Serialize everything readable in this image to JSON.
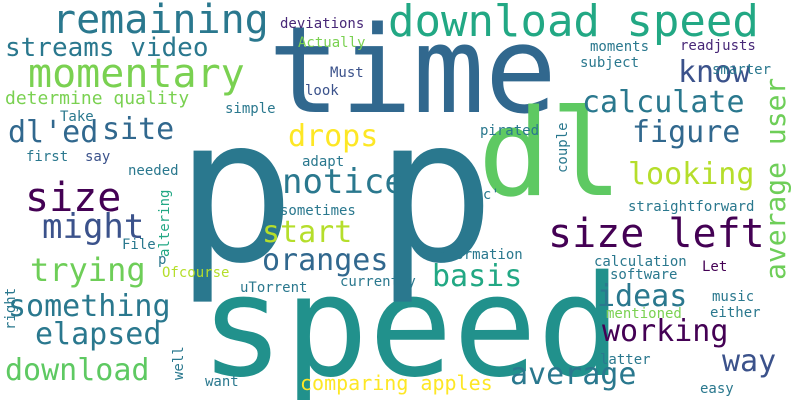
{
  "words": [
    {
      "text": "p",
      "color": "#2a788e"
    },
    {
      "text": "speed",
      "color": "#21918c"
    },
    {
      "text": "time",
      "color": "#31688e"
    },
    {
      "text": "p",
      "color": "#2a788e"
    },
    {
      "text": "dl",
      "color": "#5ec962"
    },
    {
      "text": "download speed",
      "color": "#22a884"
    },
    {
      "text": "remaining",
      "color": "#2a788e"
    },
    {
      "text": "momentary",
      "color": "#7ad151"
    },
    {
      "text": "size left",
      "color": "#440154"
    },
    {
      "text": "average user",
      "color": "#6ece58"
    },
    {
      "text": "average",
      "color": "#2a788e"
    },
    {
      "text": "size",
      "color": "#440154"
    },
    {
      "text": "calculate",
      "color": "#2a788e"
    },
    {
      "text": "streams video",
      "color": "#2a788e"
    },
    {
      "text": "know",
      "color": "#3b528b"
    },
    {
      "text": "figure",
      "color": "#31688e"
    },
    {
      "text": "site",
      "color": "#31688e"
    },
    {
      "text": "dl'ed",
      "color": "#31688e"
    },
    {
      "text": "drops",
      "color": "#fde725"
    },
    {
      "text": "notice",
      "color": "#2a788e"
    },
    {
      "text": "looking",
      "color": "#b5de2b"
    },
    {
      "text": "might",
      "color": "#3b528b"
    },
    {
      "text": "start",
      "color": "#b5de2b"
    },
    {
      "text": "oranges",
      "color": "#31688e"
    },
    {
      "text": "trying",
      "color": "#6ece58"
    },
    {
      "text": "basis",
      "color": "#22a884"
    },
    {
      "text": "ideas",
      "color": "#2a788e"
    },
    {
      "text": "something",
      "color": "#2a788e"
    },
    {
      "text": "working",
      "color": "#440154"
    },
    {
      "text": "elapsed",
      "color": "#2a788e"
    },
    {
      "text": "way",
      "color": "#3b528b"
    },
    {
      "text": "download",
      "color": "#5ec962"
    },
    {
      "text": "comparing apples",
      "color": "#fde725"
    },
    {
      "text": "determine quality",
      "color": "#7ad151"
    },
    {
      "text": "deviations",
      "color": "#482878"
    },
    {
      "text": "Actually",
      "color": "#7ad151"
    },
    {
      "text": "moments",
      "color": "#2a788e"
    },
    {
      "text": "readjusts",
      "color": "#482878"
    },
    {
      "text": "subject",
      "color": "#2a788e"
    },
    {
      "text": "smarter",
      "color": "#2a788e"
    },
    {
      "text": "Must",
      "color": "#3b528b"
    },
    {
      "text": "look",
      "color": "#3b528b"
    },
    {
      "text": "simple",
      "color": "#2a788e"
    },
    {
      "text": "Take",
      "color": "#2a788e"
    },
    {
      "text": "pirated",
      "color": "#2a788e"
    },
    {
      "text": "couple",
      "color": "#2a788e"
    },
    {
      "text": "first",
      "color": "#2a788e"
    },
    {
      "text": "say",
      "color": "#3b528b"
    },
    {
      "text": "adapt",
      "color": "#2a788e"
    },
    {
      "text": "needed",
      "color": "#2a788e"
    },
    {
      "text": "sometimes",
      "color": "#2a788e"
    },
    {
      "text": "straightforward",
      "color": "#2a788e"
    },
    {
      "text": "altering",
      "color": "#22a884"
    },
    {
      "text": "etc'",
      "color": "#2a788e"
    },
    {
      "text": "File",
      "color": "#2a788e"
    },
    {
      "text": "information",
      "color": "#2a788e"
    },
    {
      "text": "p",
      "color": "#2a788e"
    },
    {
      "text": "Let",
      "color": "#440154"
    },
    {
      "text": "calculation",
      "color": "#2a788e"
    },
    {
      "text": "Ofcourse",
      "color": "#b5de2b"
    },
    {
      "text": "software",
      "color": "#2a788e"
    },
    {
      "text": "uTorrent",
      "color": "#2a788e"
    },
    {
      "text": "currently",
      "color": "#2a788e"
    },
    {
      "text": "music",
      "color": "#2a788e"
    },
    {
      "text": "right",
      "color": "#2a788e"
    },
    {
      "text": "mentioned",
      "color": "#7ad151"
    },
    {
      "text": "either",
      "color": "#2a788e"
    },
    {
      "text": "well",
      "color": "#2a788e"
    },
    {
      "text": "latter",
      "color": "#2a788e"
    },
    {
      "text": "want",
      "color": "#2a788e"
    },
    {
      "text": "easy",
      "color": "#2a788e"
    }
  ]
}
